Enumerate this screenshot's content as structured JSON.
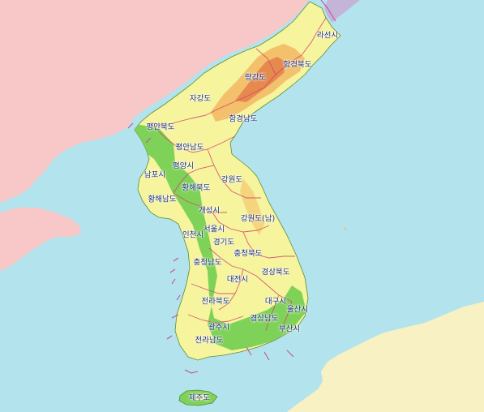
{
  "map": {
    "colors": {
      "sea": "#b3e3ec",
      "china": "#f8c7c7",
      "russia": "#c3b4d8",
      "japan": "#f7f1c4",
      "lowland": "#7fd258",
      "midland": "#f6f49c",
      "highland": "#f3c06b",
      "peak": "#e6894e",
      "province_border": "#d2436e",
      "coastline": "#5c8c3a"
    },
    "labels": [
      {
        "id": "rason",
        "text": "라선시"
      },
      {
        "id": "north-hamgyong",
        "text": "함경북도"
      },
      {
        "id": "ryanggang",
        "text": "량강도"
      },
      {
        "id": "chagang",
        "text": "자강도"
      },
      {
        "id": "south-hamgyong",
        "text": "함경남도"
      },
      {
        "id": "north-pyongan",
        "text": "평안북도"
      },
      {
        "id": "south-pyongan",
        "text": "평안남도"
      },
      {
        "id": "pyongyang",
        "text": "평양시"
      },
      {
        "id": "nampo",
        "text": "남포시"
      },
      {
        "id": "north-hwanghae",
        "text": "황해북도"
      },
      {
        "id": "kangwon-north",
        "text": "강원도"
      },
      {
        "id": "south-hwanghae",
        "text": "황해남도"
      },
      {
        "id": "kaesong",
        "text": "개성시"
      },
      {
        "id": "gangwon-south",
        "text": "강원도(남)"
      },
      {
        "id": "seoul",
        "text": "서울시"
      },
      {
        "id": "incheon",
        "text": "인천시"
      },
      {
        "id": "gyeonggi",
        "text": "경기도"
      },
      {
        "id": "north-chungcheong",
        "text": "충청북도"
      },
      {
        "id": "south-chungcheong",
        "text": "충청남도"
      },
      {
        "id": "north-gyeongsang",
        "text": "경상북도"
      },
      {
        "id": "daejeon",
        "text": "대전시"
      },
      {
        "id": "north-jeolla",
        "text": "전라북도"
      },
      {
        "id": "daegu",
        "text": "대구시"
      },
      {
        "id": "ulsan",
        "text": "울산시"
      },
      {
        "id": "south-gyeongsang",
        "text": "경상남도"
      },
      {
        "id": "gwangju",
        "text": "광주시"
      },
      {
        "id": "busan",
        "text": "부산시"
      },
      {
        "id": "south-jeolla",
        "text": "전라남도"
      },
      {
        "id": "jeju",
        "text": "제주도"
      }
    ]
  }
}
